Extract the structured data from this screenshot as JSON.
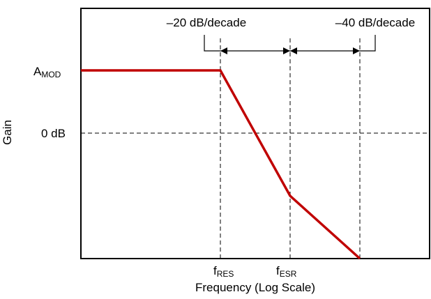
{
  "diagram": {
    "y_axis_label": "Gain",
    "x_axis_label": "Frequency (Log Scale)",
    "level_labels": {
      "amod_main": "A",
      "amod_sub": "MOD",
      "zero_db": "0 dB"
    },
    "frequency_labels": {
      "fres_main": "f",
      "fres_sub": "RES",
      "fesr_main": "f",
      "fesr_sub": "ESR"
    },
    "slope_labels": {
      "first": "–20 dB/decade",
      "second": "–40 dB/decade"
    },
    "colors": {
      "curve": "#c00000",
      "axes": "#000000",
      "guides": "#000000"
    }
  }
}
